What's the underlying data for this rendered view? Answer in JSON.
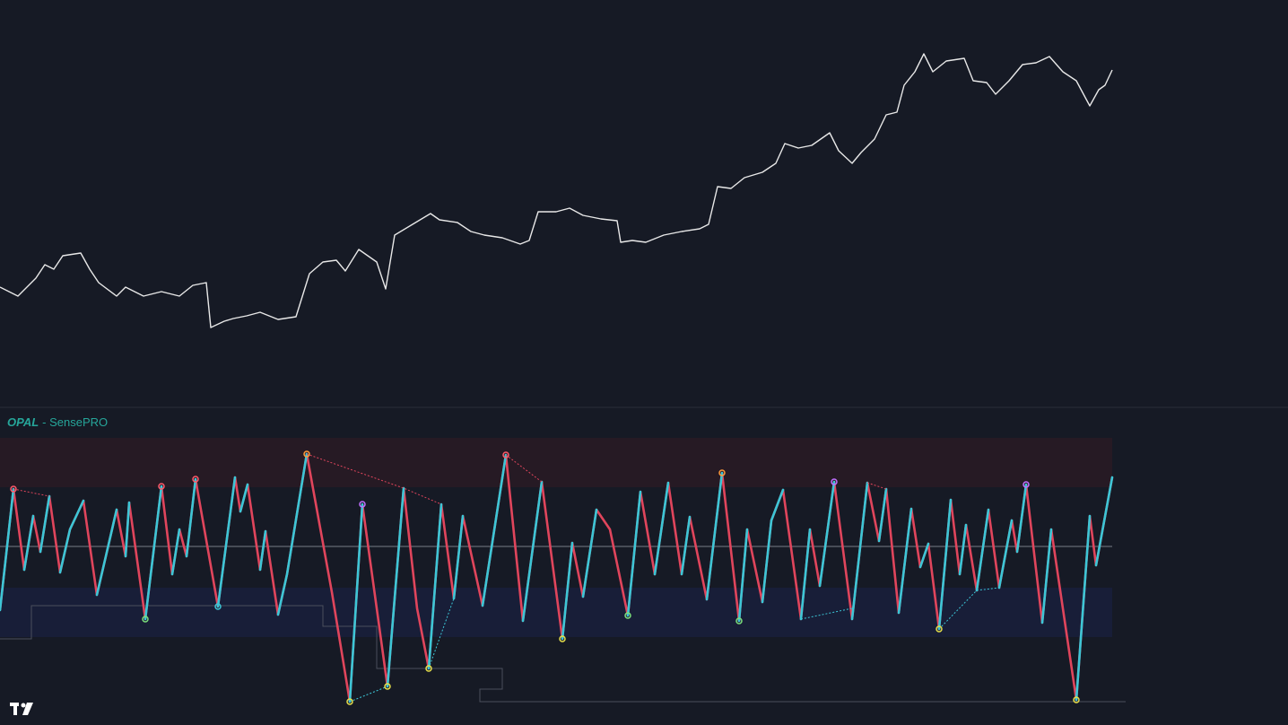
{
  "indicator": {
    "brand": "OPAL",
    "product": "- SensePRO"
  }
}
